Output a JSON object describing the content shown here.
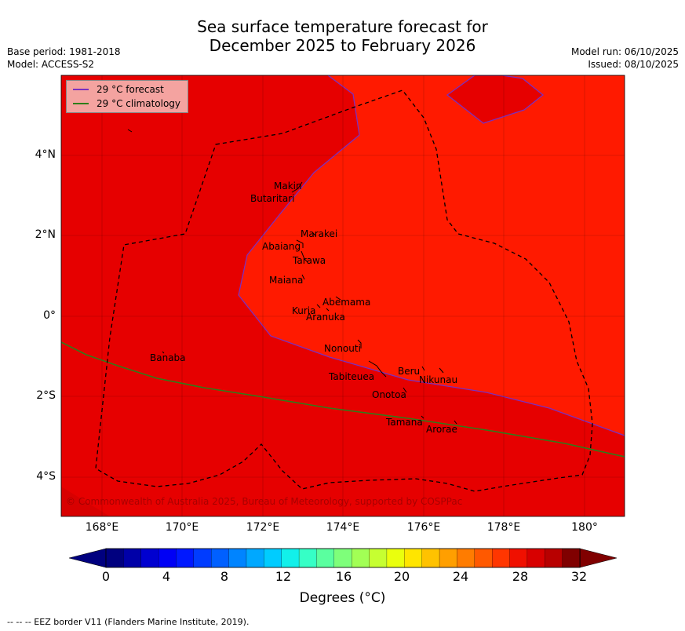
{
  "title_line1": "Sea surface temperature forecast for",
  "title_line2": "December 2025 to February 2026",
  "meta_left": {
    "base_period": "Base period: 1981-2018",
    "model": "Model: ACCESS-S2"
  },
  "meta_right": {
    "model_run": "Model run: 06/10/2025",
    "issued": "Issued: 08/10/2025"
  },
  "legend": {
    "forecast": {
      "label": "29 °C  forecast",
      "color": "#7b2fbf"
    },
    "climatology": {
      "label": "29 °C  climatology",
      "color": "#2e7d1a"
    }
  },
  "lat_labels": [
    "4°N",
    "2°N",
    "0°",
    "2°S",
    "4°S"
  ],
  "lon_labels": [
    "168°E",
    "170°E",
    "172°E",
    "174°E",
    "176°E",
    "178°E",
    "180°"
  ],
  "islands": [
    "Makin",
    "Butaritari",
    "Marakei",
    "Abaiang",
    "Tarawa",
    "Maiana",
    "Abemama",
    "Kuria",
    "Aranuka",
    "Nonouti",
    "Banaba",
    "Tabiteuea",
    "Beru",
    "Nikunau",
    "Onotoa",
    "Tamana",
    "Arorae"
  ],
  "copyright": "© Commonwealth of Australia 2025, Bureau of Meteorology, supported by COSPPac",
  "colorbar": {
    "ticks": [
      "0",
      "4",
      "8",
      "12",
      "16",
      "20",
      "24",
      "28",
      "32"
    ],
    "label": "Degrees (°C)",
    "colors": [
      "#00007f",
      "#0000a8",
      "#0000d0",
      "#0000f5",
      "#0018ff",
      "#003cff",
      "#0060ff",
      "#0084ff",
      "#00a8ff",
      "#00ccff",
      "#12f0ea",
      "#36ffc6",
      "#5aff9f",
      "#7eff7a",
      "#a2ff55",
      "#c6ff31",
      "#eaff0d",
      "#ffe500",
      "#ffc200",
      "#ff9f00",
      "#ff7c00",
      "#ff5900",
      "#ff3600",
      "#f01000",
      "#d80000",
      "#b80000",
      "#800000"
    ]
  },
  "footer": "--  --  -- EEZ border V11 (Flanders Marine Institute, 2019)."
}
